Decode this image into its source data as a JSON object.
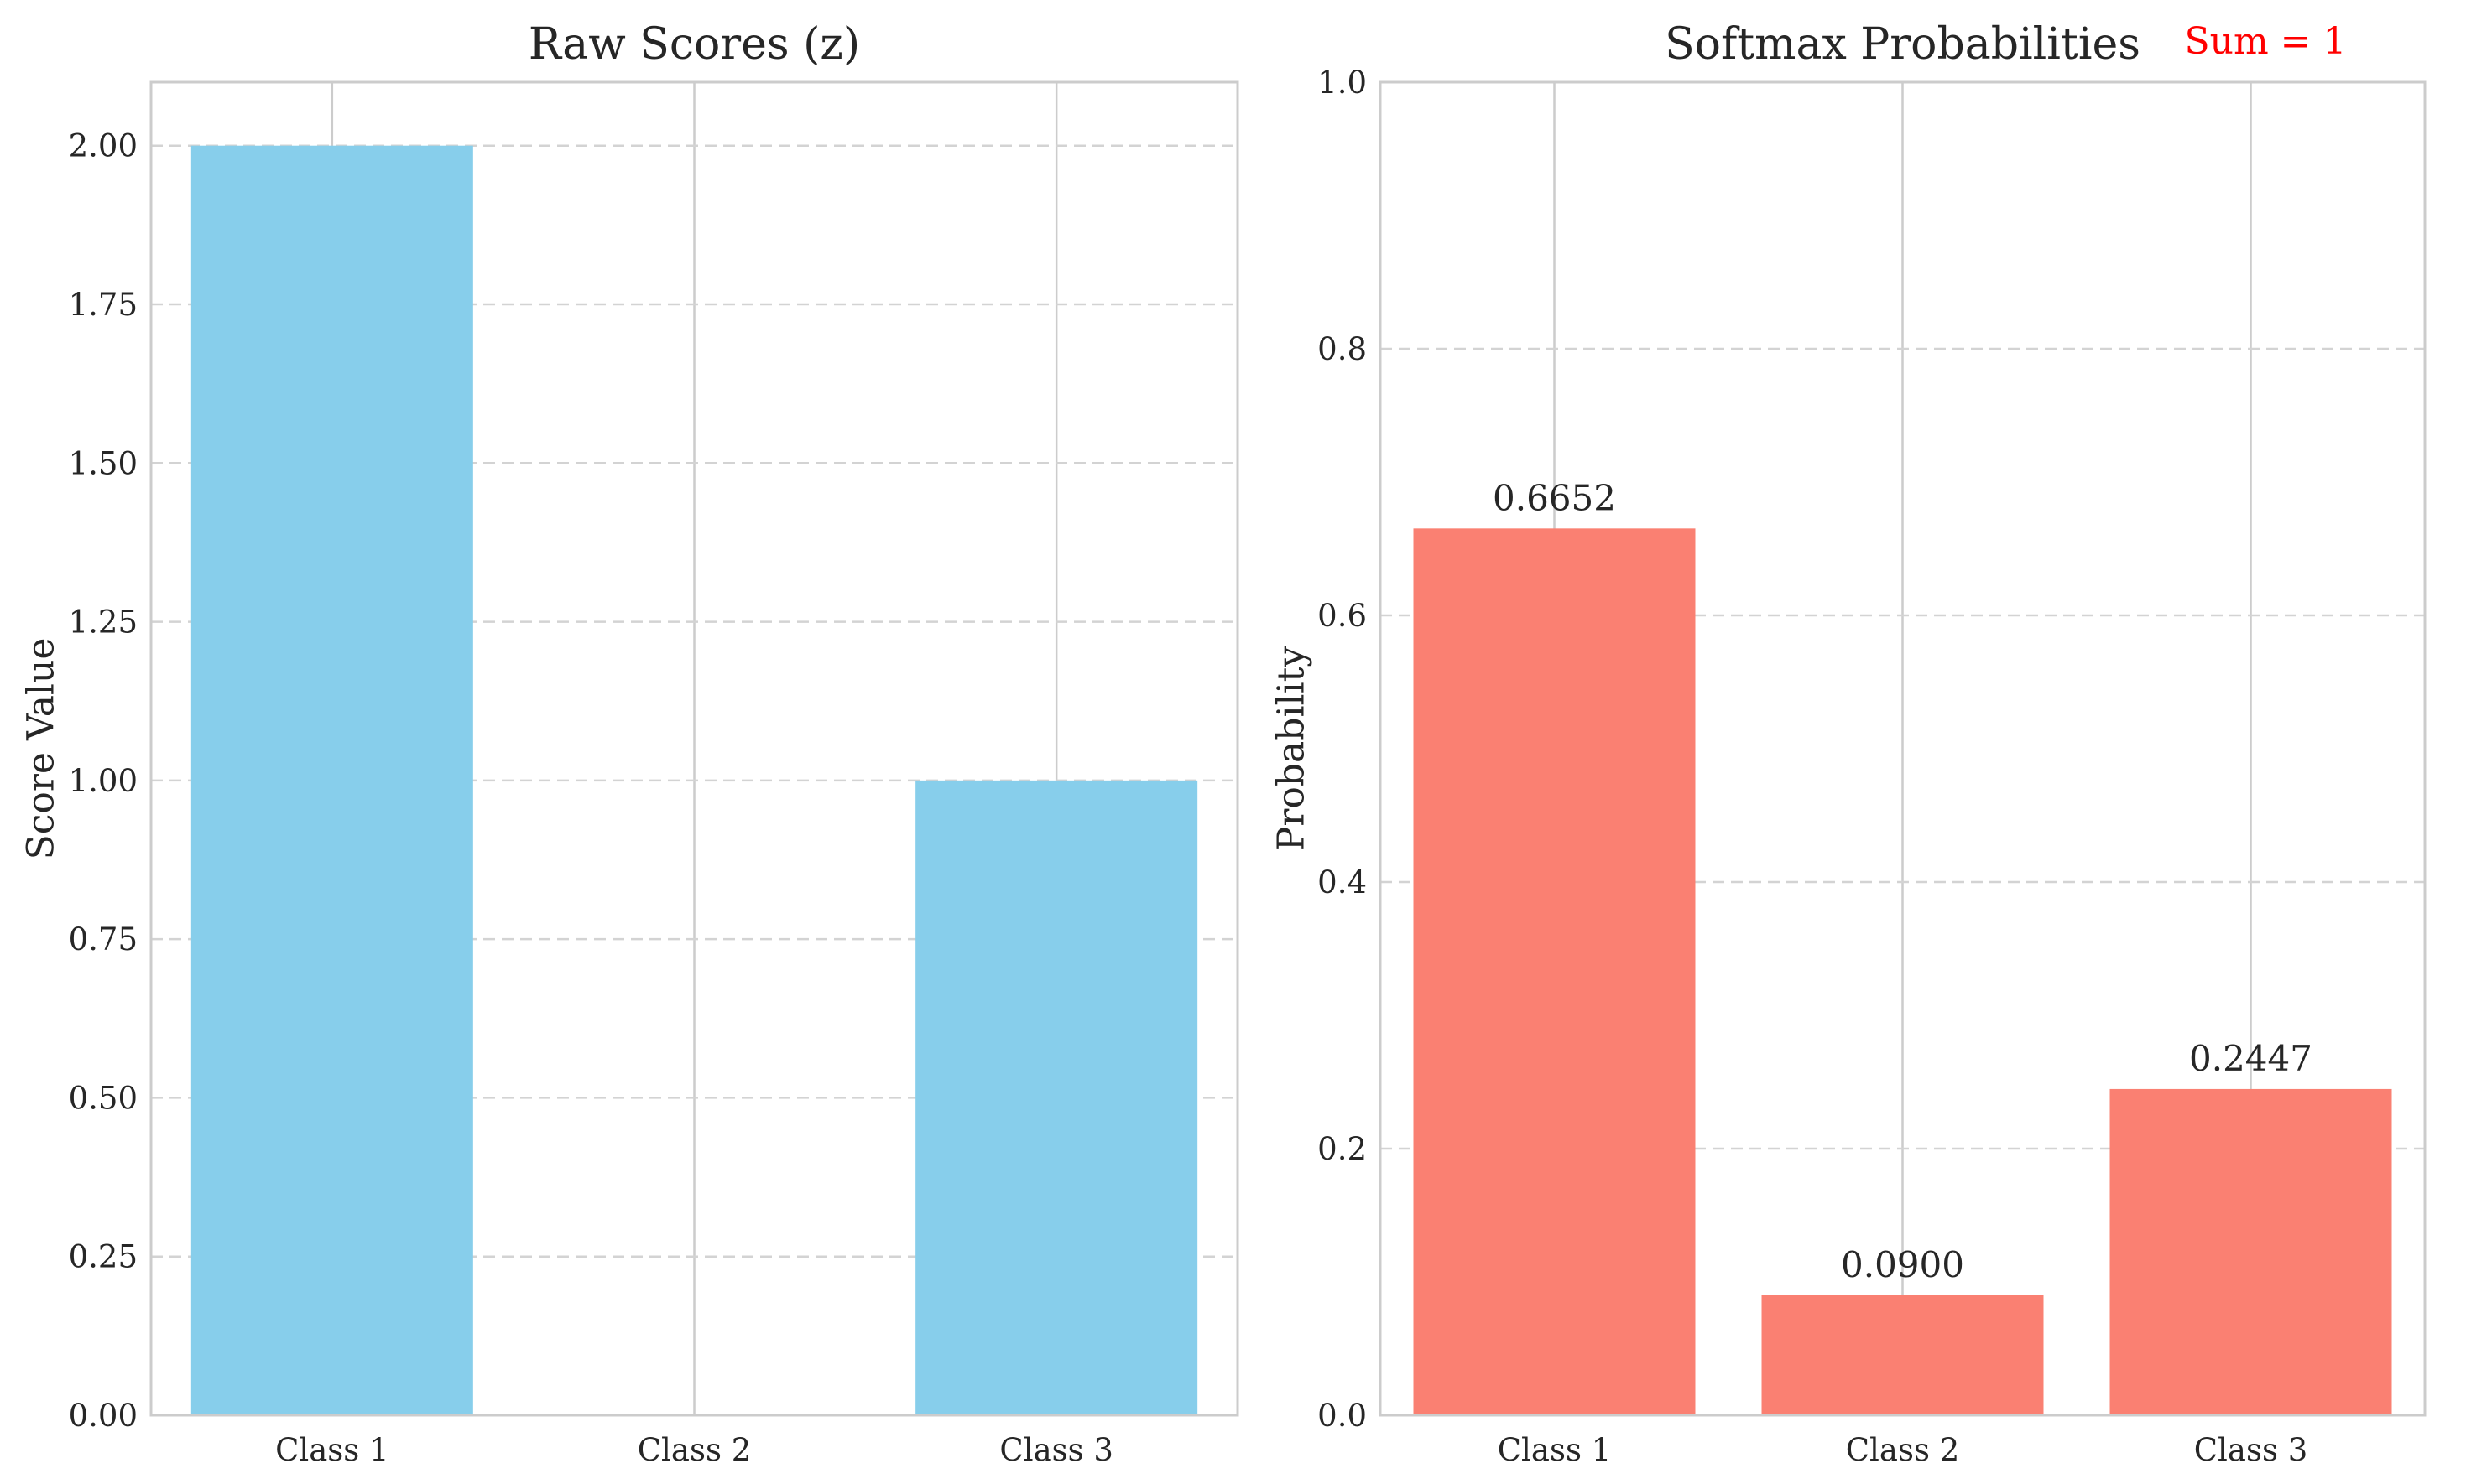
{
  "chart_data": [
    {
      "type": "bar",
      "title": "Raw Scores (z)",
      "xlabel": "",
      "ylabel": "Score Value",
      "categories": [
        "Class 1",
        "Class 2",
        "Class 3"
      ],
      "values": [
        2.0,
        0.0,
        1.0
      ],
      "ylim": [
        0,
        2.1
      ],
      "yticks": [
        0.0,
        0.25,
        0.5,
        0.75,
        1.0,
        1.25,
        1.5,
        1.75,
        2.0
      ],
      "ytick_labels": [
        "0.00",
        "0.25",
        "0.50",
        "0.75",
        "1.00",
        "1.25",
        "1.50",
        "1.75",
        "2.00"
      ],
      "data_labels": [],
      "grid": "y-dashed",
      "bar_color": "#87CEEB"
    },
    {
      "type": "bar",
      "title": "Softmax Probabilities",
      "xlabel": "",
      "ylabel": "Probability",
      "categories": [
        "Class 1",
        "Class 2",
        "Class 3"
      ],
      "values": [
        0.6652,
        0.09,
        0.2447
      ],
      "ylim": [
        0,
        1.0
      ],
      "yticks": [
        0.0,
        0.2,
        0.4,
        0.6,
        0.8,
        1.0
      ],
      "ytick_labels": [
        "0.0",
        "0.2",
        "0.4",
        "0.6",
        "0.8",
        "1.0"
      ],
      "data_labels": [
        "0.6652",
        "0.0900",
        "0.2447"
      ],
      "grid": "y-dashed",
      "bar_color": "#FA8072",
      "reference_line": {
        "y": 1.0,
        "label": "Sum = 1",
        "color": "#FF0000",
        "style": "dashed"
      }
    }
  ]
}
